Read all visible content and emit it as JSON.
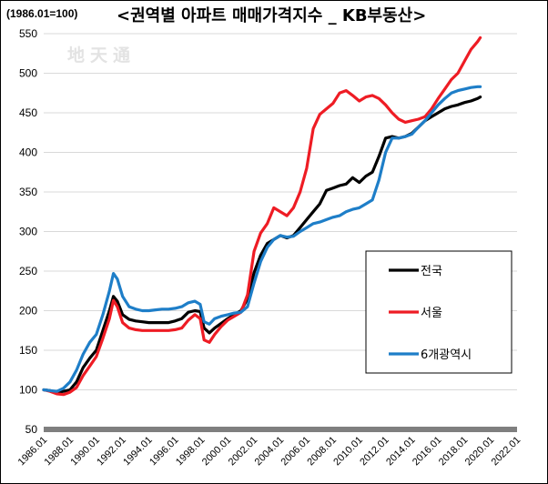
{
  "header": {
    "index_note": "(1986.01=100)",
    "title": "<권역별 아파트 매매가격지수 _ KB부동산>",
    "watermark": "地天通"
  },
  "colors": {
    "national": "#000000",
    "seoul": "#ee1c24",
    "metro6": "#1e7ec8",
    "baseline": "#7f7f7f"
  },
  "chart_data": {
    "type": "line",
    "ylim": [
      50,
      550
    ],
    "yticks": [
      50,
      100,
      150,
      200,
      250,
      300,
      350,
      400,
      450,
      500,
      550
    ],
    "xlim": [
      1986.0,
      2022.0
    ],
    "xticks": [
      "1986.01",
      "1988.01",
      "1990.01",
      "1992.01",
      "1994.01",
      "1996.01",
      "1998.01",
      "2000.01",
      "2002.01",
      "2004.01",
      "2006.01",
      "2008.01",
      "2010.01",
      "2012.01",
      "2014.01",
      "2016.01",
      "2018.01",
      "2020.01",
      "2022.01"
    ],
    "legend_position": "right",
    "series": [
      {
        "name": "전국",
        "color": "#000000",
        "x": [
          1986.0,
          1986.5,
          1987.0,
          1987.5,
          1988.0,
          1988.5,
          1989.0,
          1989.5,
          1990.0,
          1990.5,
          1991.0,
          1991.3,
          1991.6,
          1992.0,
          1992.5,
          1993.0,
          1993.5,
          1994.0,
          1994.5,
          1995.0,
          1995.5,
          1996.0,
          1996.5,
          1997.0,
          1997.5,
          1997.9,
          1998.2,
          1998.6,
          1999.0,
          1999.5,
          2000.0,
          2000.5,
          2001.0,
          2001.5,
          2002.0,
          2002.5,
          2003.0,
          2003.5,
          2004.0,
          2004.5,
          2005.0,
          2005.5,
          2006.0,
          2006.5,
          2007.0,
          2007.5,
          2008.0,
          2008.5,
          2009.0,
          2009.5,
          2010.0,
          2010.5,
          2011.0,
          2011.5,
          2012.0,
          2012.5,
          2013.0,
          2013.5,
          2014.0,
          2014.5,
          2015.0,
          2015.5,
          2016.0,
          2016.5,
          2017.0,
          2017.5,
          2018.0,
          2018.5,
          2019.0,
          2019.2
        ],
        "values": [
          100,
          99,
          97,
          98,
          100,
          110,
          128,
          140,
          150,
          175,
          200,
          218,
          212,
          195,
          189,
          187,
          186,
          185,
          185,
          185,
          185,
          187,
          190,
          198,
          200,
          199,
          178,
          172,
          178,
          184,
          190,
          195,
          200,
          215,
          248,
          270,
          285,
          290,
          295,
          292,
          295,
          305,
          315,
          325,
          335,
          352,
          355,
          358,
          360,
          368,
          362,
          370,
          375,
          395,
          418,
          420,
          418,
          420,
          424,
          432,
          440,
          445,
          450,
          455,
          458,
          460,
          463,
          465,
          468,
          470
        ]
      },
      {
        "name": "서울",
        "color": "#ee1c24",
        "x": [
          1986.0,
          1986.5,
          1987.0,
          1987.5,
          1988.0,
          1988.5,
          1989.0,
          1989.5,
          1990.0,
          1990.5,
          1991.0,
          1991.3,
          1991.6,
          1992.0,
          1992.5,
          1993.0,
          1993.5,
          1994.0,
          1994.5,
          1995.0,
          1995.5,
          1996.0,
          1996.5,
          1997.0,
          1997.5,
          1997.9,
          1998.2,
          1998.6,
          1999.0,
          1999.5,
          2000.0,
          2000.5,
          2001.0,
          2001.5,
          2002.0,
          2002.5,
          2003.0,
          2003.5,
          2004.0,
          2004.5,
          2005.0,
          2005.5,
          2006.0,
          2006.5,
          2007.0,
          2007.5,
          2008.0,
          2008.5,
          2009.0,
          2009.5,
          2010.0,
          2010.5,
          2011.0,
          2011.5,
          2012.0,
          2012.5,
          2013.0,
          2013.5,
          2014.0,
          2014.5,
          2015.0,
          2015.5,
          2016.0,
          2016.5,
          2017.0,
          2017.5,
          2018.0,
          2018.5,
          2019.0,
          2019.2
        ],
        "values": [
          100,
          98,
          95,
          94,
          97,
          103,
          118,
          130,
          142,
          165,
          190,
          213,
          205,
          185,
          178,
          176,
          175,
          175,
          175,
          175,
          175,
          176,
          178,
          188,
          195,
          190,
          163,
          160,
          170,
          180,
          188,
          193,
          198,
          220,
          275,
          298,
          310,
          330,
          325,
          320,
          330,
          350,
          380,
          430,
          448,
          455,
          462,
          475,
          478,
          472,
          465,
          470,
          472,
          468,
          460,
          450,
          442,
          438,
          440,
          442,
          445,
          455,
          468,
          480,
          492,
          500,
          515,
          530,
          540,
          545
        ]
      },
      {
        "name": "6개광역시",
        "color": "#1e7ec8",
        "x": [
          1986.0,
          1986.5,
          1987.0,
          1987.5,
          1988.0,
          1988.5,
          1989.0,
          1989.5,
          1990.0,
          1990.5,
          1991.0,
          1991.3,
          1991.6,
          1992.0,
          1992.5,
          1993.0,
          1993.5,
          1994.0,
          1994.5,
          1995.0,
          1995.5,
          1996.0,
          1996.5,
          1997.0,
          1997.5,
          1997.9,
          1998.2,
          1998.6,
          1999.0,
          1999.5,
          2000.0,
          2000.5,
          2001.0,
          2001.5,
          2002.0,
          2002.5,
          2003.0,
          2003.5,
          2004.0,
          2004.5,
          2005.0,
          2005.5,
          2006.0,
          2006.5,
          2007.0,
          2007.5,
          2008.0,
          2008.5,
          2009.0,
          2009.5,
          2010.0,
          2010.5,
          2011.0,
          2011.5,
          2012.0,
          2012.5,
          2013.0,
          2013.5,
          2014.0,
          2014.5,
          2015.0,
          2015.5,
          2016.0,
          2016.5,
          2017.0,
          2017.5,
          2018.0,
          2018.5,
          2019.0,
          2019.2
        ],
        "values": [
          100,
          99,
          98,
          102,
          110,
          125,
          145,
          160,
          170,
          195,
          225,
          247,
          240,
          218,
          205,
          202,
          200,
          200,
          201,
          202,
          202,
          203,
          205,
          210,
          212,
          208,
          186,
          183,
          190,
          193,
          195,
          197,
          198,
          205,
          235,
          262,
          280,
          290,
          295,
          293,
          294,
          300,
          305,
          310,
          312,
          315,
          318,
          320,
          325,
          328,
          330,
          335,
          340,
          365,
          400,
          418,
          418,
          420,
          423,
          432,
          440,
          450,
          460,
          468,
          475,
          478,
          480,
          482,
          483,
          483
        ]
      }
    ]
  }
}
